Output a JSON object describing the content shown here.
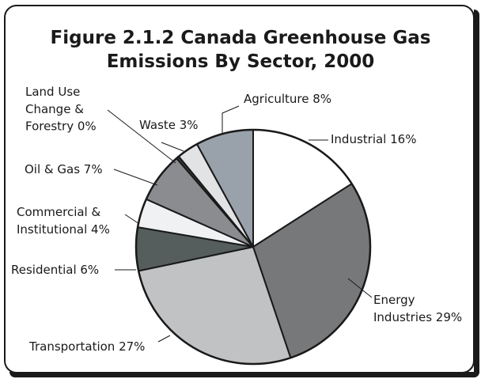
{
  "chart_data": {
    "type": "pie",
    "title_lines": [
      "Figure 2.1.2 Canada Greenhouse Gas",
      "Emissions By Sector, 2000"
    ],
    "slices": [
      {
        "key": "industrial",
        "label_lines": [
          "Industrial 16%"
        ],
        "value": 16,
        "color": "#ffffff"
      },
      {
        "key": "energy",
        "label_lines": [
          "Energy",
          "Industries 29%"
        ],
        "value": 29,
        "color": "#77787a"
      },
      {
        "key": "transportation",
        "label_lines": [
          "Transportation 27%"
        ],
        "value": 27,
        "color": "#c1c2c4"
      },
      {
        "key": "residential",
        "label_lines": [
          "Residential 6%"
        ],
        "value": 6,
        "color": "#555d5d"
      },
      {
        "key": "commercial",
        "label_lines": [
          "Commercial &",
          "Institutional 4%"
        ],
        "value": 4,
        "color": "#f0f1f3"
      },
      {
        "key": "oil-gas",
        "label_lines": [
          "Oil & Gas 7%"
        ],
        "value": 7,
        "color": "#8b8c8f"
      },
      {
        "key": "land-use",
        "label_lines": [
          "Land Use",
          "Change &",
          "Forestry 0%"
        ],
        "value": 0.4,
        "color": "#3a3a3a"
      },
      {
        "key": "waste",
        "label_lines": [
          "Waste 3%"
        ],
        "value": 3,
        "color": "#e2e3e5"
      },
      {
        "key": "agriculture",
        "label_lines": [
          "Agriculture 8%"
        ],
        "value": 8,
        "color": "#99a1aa"
      }
    ]
  }
}
